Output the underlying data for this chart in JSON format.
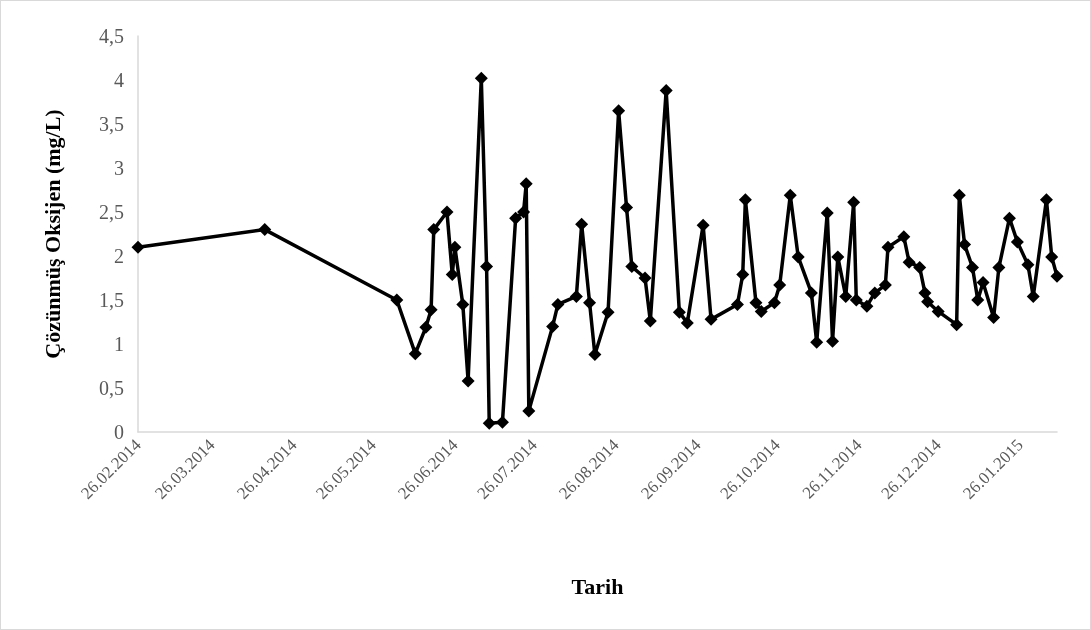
{
  "chart_data": {
    "type": "line",
    "xlabel": "Tarih",
    "ylabel": "Çözünmüş Oksijen (mg/L)",
    "x": [
      "2014-02-26",
      "2014-04-15",
      "2014-06-04",
      "2014-06-11",
      "2014-06-15",
      "2014-06-17",
      "2014-06-18",
      "2014-06-23",
      "2014-06-25",
      "2014-06-26",
      "2014-06-29",
      "2014-07-01",
      "2014-07-06",
      "2014-07-08",
      "2014-07-09",
      "2014-07-14",
      "2014-07-19",
      "2014-07-22",
      "2014-07-23",
      "2014-07-24",
      "2014-08-02",
      "2014-08-04",
      "2014-08-11",
      "2014-08-13",
      "2014-08-16",
      "2014-08-18",
      "2014-08-23",
      "2014-08-27",
      "2014-08-30",
      "2014-09-01",
      "2014-09-06",
      "2014-09-08",
      "2014-09-14",
      "2014-09-19",
      "2014-09-22",
      "2014-09-28",
      "2014-10-01",
      "2014-10-11",
      "2014-10-13",
      "2014-10-14",
      "2014-10-18",
      "2014-10-20",
      "2014-10-25",
      "2014-10-27",
      "2014-10-31",
      "2014-11-03",
      "2014-11-08",
      "2014-11-10",
      "2014-11-14",
      "2014-11-16",
      "2014-11-18",
      "2014-11-21",
      "2014-11-24",
      "2014-11-25",
      "2014-11-29",
      "2014-12-02",
      "2014-12-06",
      "2014-12-07",
      "2014-12-13",
      "2014-12-15",
      "2014-12-19",
      "2014-12-21",
      "2014-12-22",
      "2014-12-26",
      "2015-01-02",
      "2015-01-03",
      "2015-01-05",
      "2015-01-08",
      "2015-01-10",
      "2015-01-12",
      "2015-01-16",
      "2015-01-18",
      "2015-01-22",
      "2015-01-25",
      "2015-01-29",
      "2015-01-31",
      "2015-02-05",
      "2015-02-07",
      "2015-02-09"
    ],
    "series": [
      {
        "color": "#000000",
        "values": [
          2.1,
          2.3,
          1.5,
          0.89,
          1.19,
          1.39,
          2.3,
          2.5,
          1.79,
          2.1,
          1.45,
          0.58,
          4.02,
          1.88,
          0.1,
          0.11,
          2.43,
          2.5,
          2.82,
          0.24,
          1.2,
          1.45,
          1.54,
          2.36,
          1.47,
          0.88,
          1.36,
          3.65,
          2.55,
          1.88,
          1.75,
          1.26,
          3.88,
          1.36,
          1.24,
          2.35,
          1.28,
          1.45,
          1.79,
          2.64,
          1.47,
          1.37,
          1.47,
          1.67,
          2.69,
          1.99,
          1.58,
          1.02,
          2.49,
          1.03,
          1.99,
          1.54,
          2.61,
          1.5,
          1.43,
          1.58,
          1.67,
          2.1,
          2.22,
          1.93,
          1.87,
          1.58,
          1.48,
          1.37,
          1.22,
          2.69,
          2.13,
          1.87,
          1.5,
          1.7,
          1.3,
          1.87,
          2.43,
          2.16,
          1.9,
          1.54,
          2.64,
          1.99,
          1.77
        ]
      }
    ],
    "xlim": [
      "2014-02-26",
      "2015-02-09"
    ],
    "xticks": [
      {
        "value": "2014-02-26",
        "label": "26.02.2014"
      },
      {
        "value": "2014-03-26",
        "label": "26.03.2014"
      },
      {
        "value": "2014-04-26",
        "label": "26.04.2014"
      },
      {
        "value": "2014-05-26",
        "label": "26.05.2014"
      },
      {
        "value": "2014-06-26",
        "label": "26.06.2014"
      },
      {
        "value": "2014-07-26",
        "label": "26.07.2014"
      },
      {
        "value": "2014-08-26",
        "label": "26.08.2014"
      },
      {
        "value": "2014-09-26",
        "label": "26.09.2014"
      },
      {
        "value": "2014-10-26",
        "label": "26.10.2014"
      },
      {
        "value": "2014-11-26",
        "label": "26.11.2014"
      },
      {
        "value": "2014-12-26",
        "label": "26.12.2014"
      },
      {
        "value": "2015-01-26",
        "label": "26.01.2015"
      }
    ],
    "ylim": [
      0,
      4.5
    ],
    "yticks": [
      0,
      {
        "value": 0.5,
        "label": "0,5"
      },
      1,
      {
        "value": 1.5,
        "label": "1,5"
      },
      2,
      {
        "value": 2.5,
        "label": "2,5"
      },
      3,
      {
        "value": 3.5,
        "label": "3,5"
      },
      4,
      {
        "value": 4.5,
        "label": "4,5"
      }
    ],
    "grid": false,
    "marker": "diamond",
    "line_style": "solid"
  }
}
